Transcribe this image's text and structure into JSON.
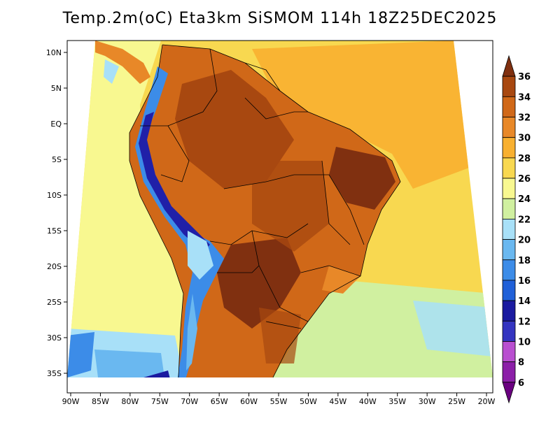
{
  "title": "Temp.2m(oC) Eta3km SiSMOM 114h 18Z25DEC2025",
  "map": {
    "variable": "2 m temperature",
    "units": "oC",
    "lon_ticks": [
      "90W",
      "85W",
      "80W",
      "75W",
      "70W",
      "65W",
      "60W",
      "55W",
      "50W",
      "45W",
      "40W",
      "35W",
      "30W",
      "25W",
      "20W"
    ],
    "lat_ticks": [
      "10N",
      "5N",
      "EQ",
      "5S",
      "10S",
      "15S",
      "20S",
      "25S",
      "30S",
      "35S"
    ]
  },
  "colorbar": {
    "labels": [
      "6",
      "8",
      "10",
      "12",
      "14",
      "16",
      "18",
      "20",
      "22",
      "24",
      "26",
      "28",
      "30",
      "32",
      "34",
      "36"
    ],
    "colors": [
      "#6a0080",
      "#8c1fa8",
      "#b94fd0",
      "#3434c0",
      "#1a1aa0",
      "#2060d8",
      "#3c8ce8",
      "#6ab8f0",
      "#a8e0f8",
      "#d0f0a0",
      "#f8f890",
      "#f8d850",
      "#f8b030",
      "#e88828",
      "#d06818",
      "#a84810",
      "#803010"
    ]
  },
  "chart_data": {
    "type": "heatmap",
    "title": "Temp.2m(oC) Eta3km SiSMOM 114h 18Z25DEC2025",
    "x_range_lon": [
      -90,
      -20
    ],
    "y_range_lat": [
      -38,
      11
    ],
    "colorbar_range": [
      6,
      36
    ],
    "colorbar_step": 2,
    "approx_regions": [
      {
        "region": "Amazon / central Brazil interior",
        "temp_c": "30-34"
      },
      {
        "region": "Gran Chaco / northern Argentina",
        "temp_c": "32-36"
      },
      {
        "region": "Northeast Brazil interior",
        "temp_c": "32-36"
      },
      {
        "region": "Atlantic ocean (tropical)",
        "temp_c": "26-28"
      },
      {
        "region": "Pacific ocean (subtropical)",
        "temp_c": "22-24"
      },
      {
        "region": "Andes high terrain",
        "temp_c": "6-18"
      },
      {
        "region": "South Atlantic offshore",
        "temp_c": "20-22"
      }
    ]
  }
}
